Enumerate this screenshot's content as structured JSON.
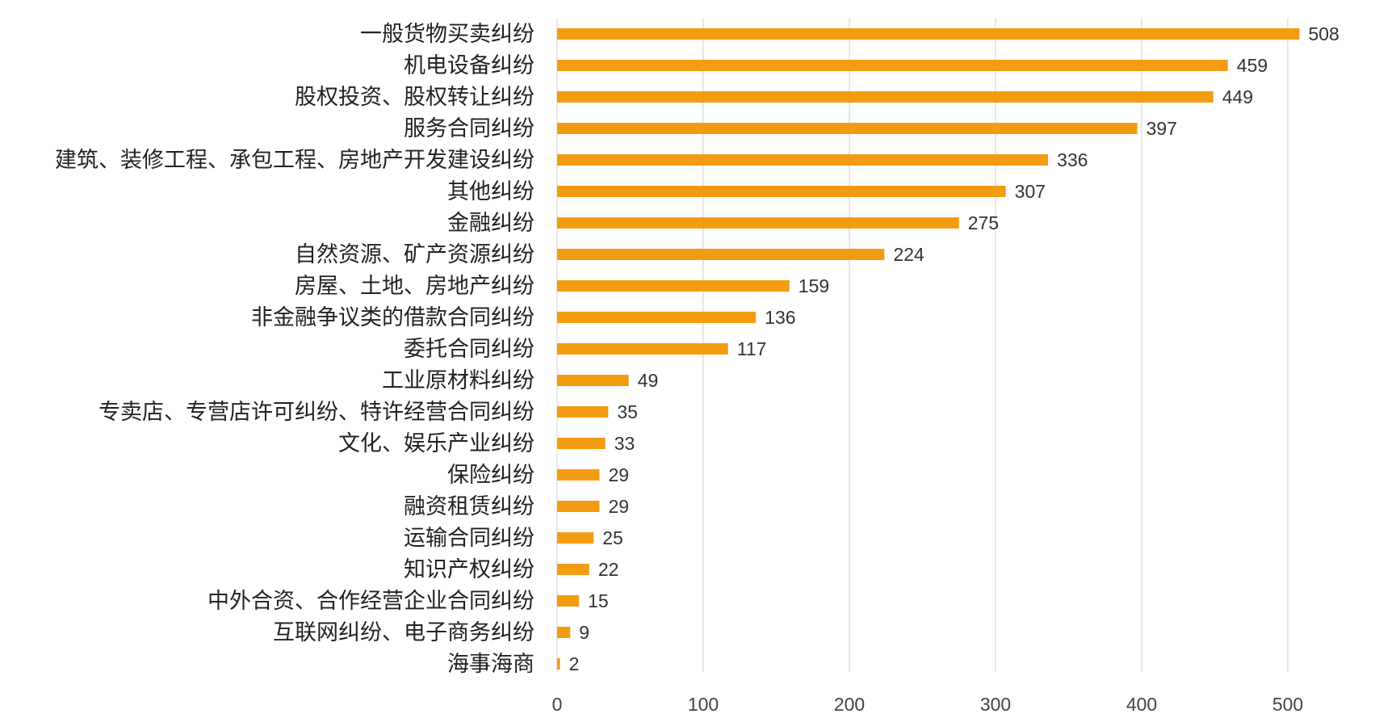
{
  "chart_data": {
    "type": "bar",
    "orientation": "horizontal",
    "title": "",
    "xlabel": "",
    "ylabel": "",
    "xlim": [
      0,
      550
    ],
    "ticks": [
      0,
      100,
      200,
      300,
      400,
      500
    ],
    "grid": true,
    "bar_color": "#f39c12",
    "categories": [
      "一般货物买卖纠纷",
      "机电设备纠纷",
      "股权投资、股权转让纠纷",
      "服务合同纠纷",
      "建筑、装修工程、承包工程、房地产开发建设纠纷",
      "其他纠纷",
      "金融纠纷",
      "自然资源、矿产资源纠纷",
      "房屋、土地、房地产纠纷",
      "非金融争议类的借款合同纠纷",
      "委托合同纠纷",
      "工业原材料纠纷",
      "专卖店、专营店许可纠纷、特许经营合同纠纷",
      "文化、娱乐产业纠纷",
      "保险纠纷",
      "融资租赁纠纷",
      "运输合同纠纷",
      "知识产权纠纷",
      "中外合资、合作经营企业合同纠纷",
      "互联网纠纷、电子商务纠纷",
      "海事海商"
    ],
    "values": [
      508,
      459,
      449,
      397,
      336,
      307,
      275,
      224,
      159,
      136,
      117,
      49,
      35,
      33,
      29,
      29,
      25,
      22,
      15,
      9,
      2
    ]
  }
}
